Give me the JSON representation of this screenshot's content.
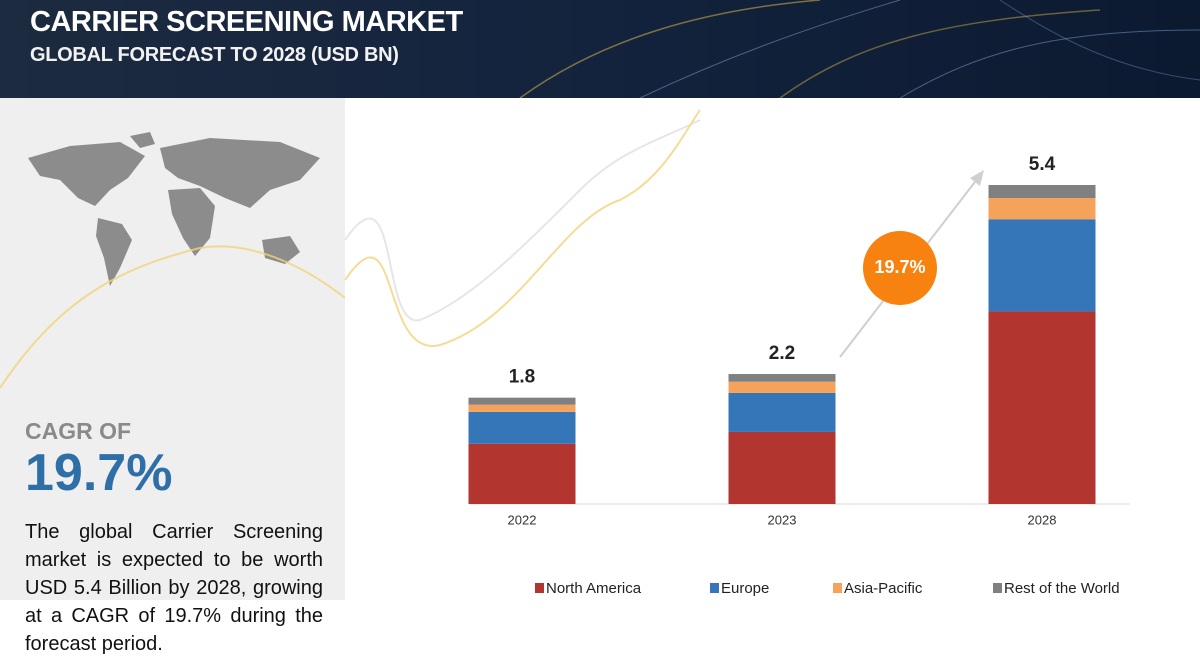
{
  "header": {
    "title": "CARRIER SCREENING MARKET",
    "subtitle": "GLOBAL FORECAST TO 2028 (USD BN)"
  },
  "summary": {
    "cagr_label": "CAGR OF",
    "cagr_value": "19.7%",
    "description": "The global Carrier Screening market is expected to be worth USD  5.4 Billion by 2028, growing at a CAGR of 19.7% during the forecast period."
  },
  "chart_data": {
    "type": "stacked_bar",
    "categories": [
      "2022",
      "2023",
      "2028"
    ],
    "series": [
      {
        "name": "North America",
        "color": "#b3352f",
        "values": [
          1.02,
          1.22,
          3.26
        ]
      },
      {
        "name": "Europe",
        "color": "#3576b9",
        "values": [
          0.54,
          0.66,
          1.56
        ]
      },
      {
        "name": "Asia-Pacific",
        "color": "#f5a35a",
        "values": [
          0.12,
          0.19,
          0.36
        ]
      },
      {
        "name": "Rest of the World",
        "color": "#808080",
        "values": [
          0.12,
          0.13,
          0.22
        ]
      }
    ],
    "totals": [
      1.8,
      2.2,
      5.4
    ],
    "annotation": "19.7%",
    "legend_position": "bottom"
  }
}
